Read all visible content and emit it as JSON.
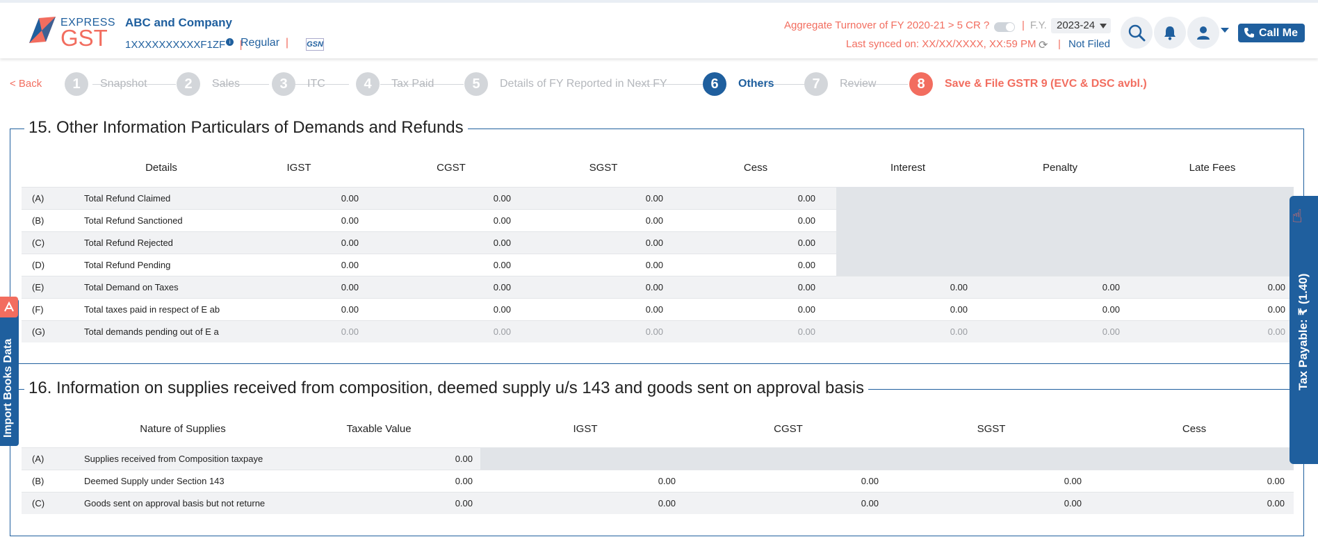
{
  "header": {
    "logo_express": "EXPRESS",
    "logo_gst": "GST",
    "company_name": "ABC and Company",
    "gstin": "1XXXXXXXXXXF1ZF",
    "info_badge": "i",
    "registration_type": "Regular",
    "gsn_logo": "GSN",
    "aggregate_turnover": "Aggregate Turnover of FY 2020-21 > 5 CR ?",
    "fy_label": "F.Y.",
    "fy_value": "2023-24",
    "last_synced": "Last synced on: XX/XX/XXXX, XX:59 PM",
    "status": "Not Filed",
    "call_me": "Call Me"
  },
  "stepper": {
    "back": "< Back",
    "steps": [
      {
        "num": "1",
        "label": "Snapshot"
      },
      {
        "num": "2",
        "label": "Sales"
      },
      {
        "num": "3",
        "label": "ITC"
      },
      {
        "num": "4",
        "label": "Tax Paid"
      },
      {
        "num": "5",
        "label": "Details of FY Reported in Next FY"
      },
      {
        "num": "6",
        "label": "Others"
      },
      {
        "num": "7",
        "label": "Review"
      },
      {
        "num": "8",
        "label": "Save & File GSTR 9 (EVC & DSC avbl.)"
      }
    ]
  },
  "section15": {
    "title": "15. Other Information Particulars of Demands and Refunds",
    "columns": [
      "Details",
      "IGST",
      "CGST",
      "SGST",
      "Cess",
      "Interest",
      "Penalty",
      "Late Fees"
    ],
    "rows": [
      {
        "code": "(A)",
        "name": "Total Refund Claimed",
        "values": [
          "0.00",
          "0.00",
          "0.00",
          "0.00"
        ]
      },
      {
        "code": "(B)",
        "name": "Total Refund Sanctioned",
        "values": [
          "0.00",
          "0.00",
          "0.00",
          "0.00"
        ]
      },
      {
        "code": "(C)",
        "name": "Total Refund Rejected",
        "values": [
          "0.00",
          "0.00",
          "0.00",
          "0.00"
        ]
      },
      {
        "code": "(D)",
        "name": "Total Refund Pending",
        "values": [
          "0.00",
          "0.00",
          "0.00",
          "0.00"
        ]
      },
      {
        "code": "(E)",
        "name": "Total Demand on Taxes",
        "values": [
          "0.00",
          "0.00",
          "0.00",
          "0.00",
          "0.00",
          "0.00",
          "0.00"
        ]
      },
      {
        "code": "(F)",
        "name": "Total taxes paid in respect of E ab",
        "values": [
          "0.00",
          "0.00",
          "0.00",
          "0.00",
          "0.00",
          "0.00",
          "0.00"
        ]
      },
      {
        "code": "(G)",
        "name": "Total demands pending out of E a",
        "values": [
          "0.00",
          "0.00",
          "0.00",
          "0.00",
          "0.00",
          "0.00",
          "0.00"
        ]
      }
    ]
  },
  "section16": {
    "title": "16. Information on supplies received from composition, deemed supply u/s 143 and goods sent on approval basis",
    "columns": [
      "Nature of Supplies",
      "Taxable Value",
      "IGST",
      "CGST",
      "SGST",
      "Cess"
    ],
    "rows": [
      {
        "code": "(A)",
        "name": "Supplies received from Composition taxpaye",
        "values": [
          "0.00"
        ]
      },
      {
        "code": "(B)",
        "name": "Deemed Supply under Section 143",
        "values": [
          "0.00",
          "0.00",
          "0.00",
          "0.00",
          "0.00"
        ]
      },
      {
        "code": "(C)",
        "name": "Goods sent on approval basis but not returne",
        "values": [
          "0.00",
          "0.00",
          "0.00",
          "0.00",
          "0.00"
        ]
      }
    ]
  },
  "side": {
    "import_books": "Import Books Data",
    "tax_payable": "Tax Payable: ₹ (1.40)"
  },
  "colors": {
    "brand_blue": "#1f5f9e",
    "brand_coral": "#f26d5f"
  }
}
